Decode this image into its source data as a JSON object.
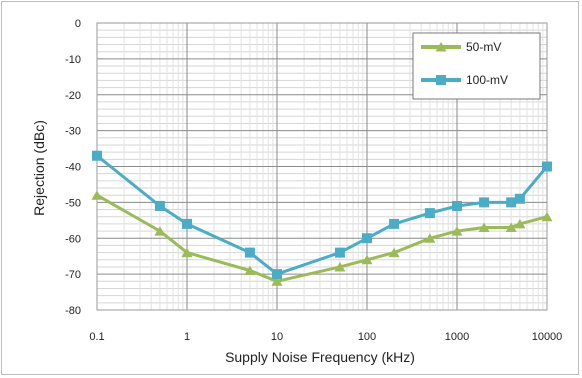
{
  "chart_data": {
    "type": "line",
    "title": "",
    "xlabel": "Supply Noise Frequency (kHz)",
    "ylabel": "Rejection (dBc)",
    "xscale": "log",
    "xlim": [
      0.1,
      10000
    ],
    "ylim": [
      -80,
      0
    ],
    "x_ticks": [
      "0.1",
      "1",
      "10",
      "100",
      "1000",
      "10000"
    ],
    "y_ticks": [
      "0",
      "-10",
      "-20",
      "-30",
      "-40",
      "-50",
      "-60",
      "-70",
      "-80"
    ],
    "grid": true,
    "legend_position": "top-right",
    "series": [
      {
        "name": "50-mV",
        "color": "#9bbb59",
        "marker": "triangle",
        "x": [
          0.1,
          0.5,
          1,
          5,
          10,
          50,
          100,
          200,
          500,
          1000,
          2000,
          4000,
          5000,
          10000
        ],
        "y": [
          -48,
          -58,
          -64,
          -69,
          -72,
          -68,
          -66,
          -64,
          -60,
          -58,
          -57,
          -57,
          -56,
          -54
        ]
      },
      {
        "name": "100-mV",
        "color": "#4bacc6",
        "marker": "square",
        "x": [
          0.1,
          0.5,
          1,
          5,
          10,
          50,
          100,
          200,
          500,
          1000,
          2000,
          4000,
          5000,
          10000
        ],
        "y": [
          -37,
          -51,
          -56,
          -64,
          -70,
          -64,
          -60,
          -56,
          -53,
          -51,
          -50,
          -50,
          -49,
          -40
        ]
      }
    ]
  }
}
